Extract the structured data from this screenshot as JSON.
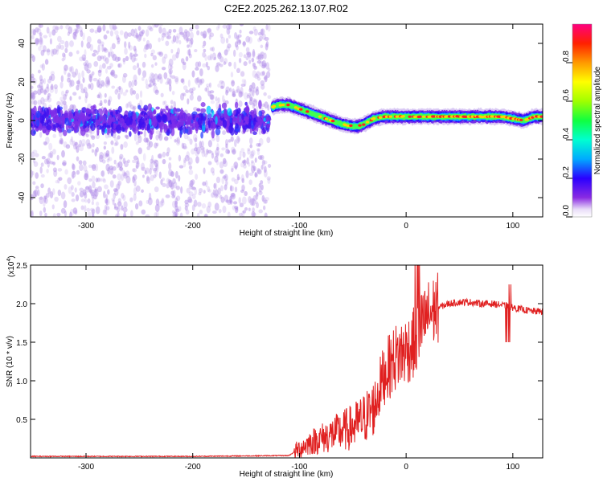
{
  "title": "C2E2.2025.262.13.07.R02",
  "chart_data": [
    {
      "type": "heatmap",
      "xlabel": "Height of straight line (km)",
      "ylabel": "Frequency (Hz)",
      "xlim": [
        -352,
        128
      ],
      "ylim": [
        -50,
        50
      ],
      "xticks": [
        -300,
        -200,
        -100,
        0,
        100
      ],
      "xtick_labels": [
        "-300",
        "-200",
        "-100",
        "0",
        "100"
      ],
      "yticks": [
        -40,
        -20,
        0,
        20,
        40
      ],
      "ytick_labels": [
        "-40",
        "-20",
        "0",
        "20",
        "40"
      ],
      "colorbar": {
        "label": "Normalized spectral amplitude",
        "ticks": [
          0.0,
          0.2,
          0.4,
          0.6,
          0.8
        ],
        "tick_labels": [
          "0.0",
          "0.2",
          "0.4",
          "0.6",
          "0.8"
        ],
        "range": [
          0,
          1
        ]
      },
      "ridge_frequency_hz": {
        "x": [
          -125,
          -120,
          -110,
          -100,
          -90,
          -80,
          -70,
          -60,
          -50,
          -45,
          -40,
          -30,
          -20,
          0,
          20,
          50,
          80,
          90,
          100,
          110,
          120,
          128
        ],
        "y": [
          7,
          8,
          8,
          6,
          4,
          2,
          0,
          -2,
          -3,
          -3,
          -2,
          1,
          2,
          2,
          2,
          2,
          2,
          2,
          1,
          0,
          2,
          2
        ]
      },
      "noise_band_x": [
        -352,
        -128
      ]
    },
    {
      "type": "line",
      "xlabel": "Height of straight line (km)",
      "ylabel": "SNR (10 * v/v)",
      "y_multiplier": "(x10",
      "y_multiplier_exp": "4",
      "y_multiplier_close": ")",
      "xlim": [
        -352,
        128
      ],
      "ylim": [
        0,
        2.5
      ],
      "xticks": [
        -300,
        -200,
        -100,
        0,
        100
      ],
      "xtick_labels": [
        "-300",
        "-200",
        "-100",
        "0",
        "100"
      ],
      "yticks": [
        0.5,
        1.0,
        1.5,
        2.0,
        2.5
      ],
      "ytick_labels": [
        "0.5",
        "1.0",
        "1.5",
        "2.0",
        "2.5"
      ],
      "series": [
        {
          "name": "SNR",
          "color": "#e02020",
          "x": [
            -352,
            -300,
            -200,
            -110,
            -100,
            -90,
            -80,
            -70,
            -60,
            -50,
            -40,
            -30,
            -25,
            -20,
            -10,
            0,
            5,
            10,
            15,
            20,
            30,
            40,
            50,
            60,
            70,
            80,
            90,
            100,
            110,
            120,
            128
          ],
          "y": [
            0.02,
            0.02,
            0.02,
            0.03,
            0.12,
            0.2,
            0.25,
            0.3,
            0.35,
            0.4,
            0.5,
            0.65,
            0.9,
            1.1,
            1.3,
            1.4,
            1.45,
            1.55,
            1.7,
            1.85,
            1.95,
            2.0,
            2.02,
            2.02,
            2.0,
            2.0,
            1.98,
            1.95,
            1.92,
            1.9,
            1.9
          ]
        }
      ]
    }
  ]
}
